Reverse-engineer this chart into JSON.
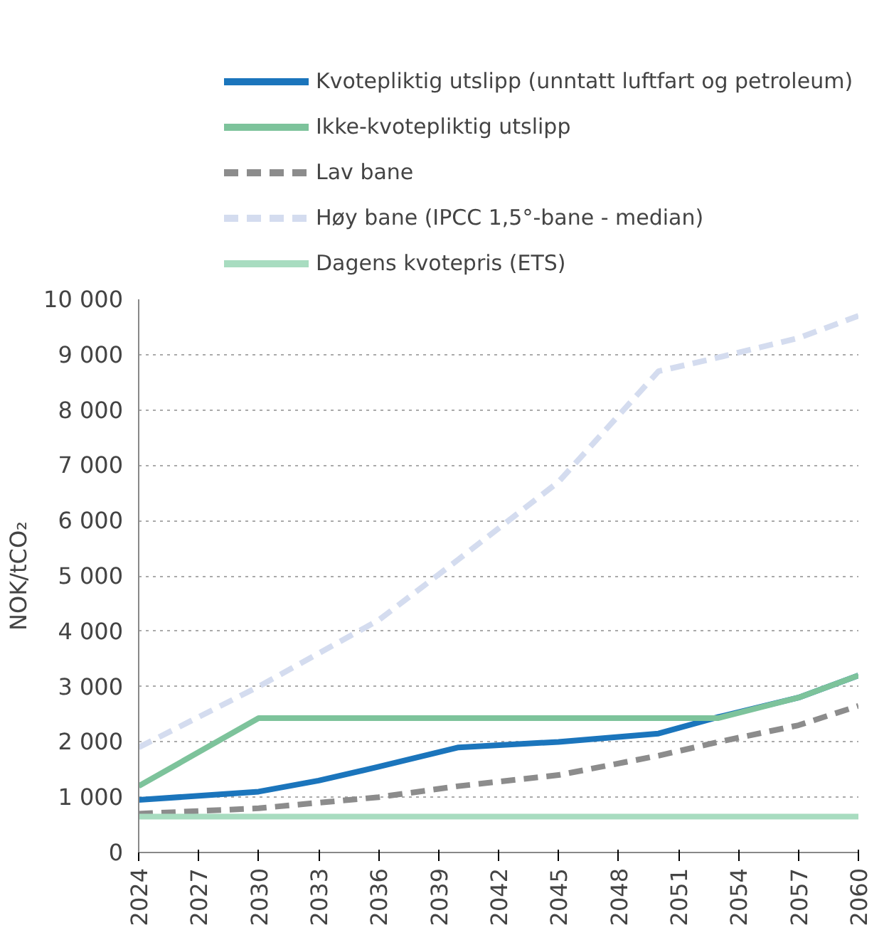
{
  "chart_data": {
    "type": "line",
    "ylabel": "NOK/tCO₂",
    "x": [
      2024,
      2030,
      2033,
      2036,
      2040,
      2045,
      2050,
      2053,
      2057,
      2060
    ],
    "xlim": [
      2024,
      2060
    ],
    "xticks": [
      2024,
      2027,
      2030,
      2033,
      2036,
      2039,
      2042,
      2045,
      2048,
      2051,
      2054,
      2057,
      2060
    ],
    "ylim": [
      0,
      10000
    ],
    "yticks": [
      {
        "value": 0,
        "label": "0"
      },
      {
        "value": 1000,
        "label": "1 000"
      },
      {
        "value": 2000,
        "label": "2 000"
      },
      {
        "value": 3000,
        "label": "3 000"
      },
      {
        "value": 4000,
        "label": "4 000"
      },
      {
        "value": 5000,
        "label": "5 000"
      },
      {
        "value": 6000,
        "label": "6 000"
      },
      {
        "value": 7000,
        "label": "7 000"
      },
      {
        "value": 8000,
        "label": "8 000"
      },
      {
        "value": 9000,
        "label": "9 000"
      },
      {
        "value": 10000,
        "label": "10 000"
      }
    ],
    "grid": "y",
    "legend": "top",
    "marker": "none",
    "series": [
      {
        "name": "Kvotepliktig utslipp (unntatt luftfart og petroleum)",
        "color": "#1b75bc",
        "line_style": "solid",
        "values": [
          950,
          1100,
          1300,
          1550,
          1900,
          2000,
          2150,
          2450,
          2800,
          3200
        ]
      },
      {
        "name": "Ikke-kvotepliktig utslipp",
        "color": "#7dc39b",
        "line_style": "solid",
        "values": [
          1200,
          2430,
          2430,
          2430,
          2430,
          2430,
          2430,
          2430,
          2800,
          3200
        ]
      },
      {
        "name": "Lav bane",
        "color": "#8c8c8c",
        "line_style": "dashed",
        "values": [
          700,
          800,
          900,
          1000,
          1200,
          1400,
          1750,
          2000,
          2300,
          2650
        ]
      },
      {
        "name": "Høy bane (IPCC 1,5°-bane - median)",
        "color": "#d4dcef",
        "line_style": "dashed",
        "values": [
          1900,
          3000,
          3600,
          4200,
          5300,
          6700,
          8700,
          8950,
          9300,
          9700
        ]
      },
      {
        "name": "Dagens kvotepris (ETS)",
        "color": "#a8dcc0",
        "line_style": "solid",
        "values": [
          650,
          650,
          650,
          650,
          650,
          650,
          650,
          650,
          650,
          650
        ]
      }
    ]
  }
}
